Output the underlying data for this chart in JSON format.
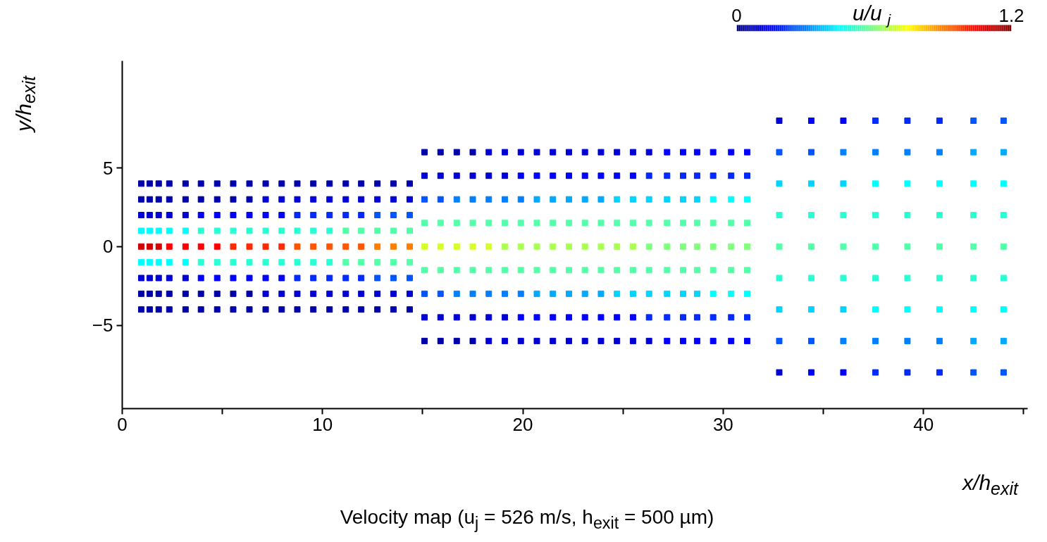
{
  "chart_data": {
    "type": "scatter",
    "xlabel": "x/h$_{exit}$",
    "ylabel": "y/h$_{exit}$",
    "clabel": "u/u$_{j}$",
    "annotations": [
      "Velocity map (u$_{j}$ = 526 m/s, h$_{exit}$ = 500 µm)"
    ],
    "xlim": [
      0,
      45.2
    ],
    "ylim": [
      -10.3,
      11.8
    ],
    "xticks": [
      0,
      {
        "value": 5,
        "label": null
      },
      10,
      {
        "value": 15,
        "label": null
      },
      20,
      {
        "value": 25,
        "label": null
      },
      30,
      {
        "value": 35,
        "label": null
      },
      40,
      {
        "value": 45,
        "label": null
      }
    ],
    "yticks": [
      -5,
      0,
      5
    ],
    "clim": [
      0,
      1.2
    ],
    "cticks": [
      0,
      1.2
    ],
    "marker": "square",
    "series": [
      {
        "x": [
          0.95,
          0.95,
          0.95,
          0.95,
          0.95,
          0.95,
          0.95,
          0.95,
          0.95
        ],
        "values": [
          -4,
          -3,
          -2,
          -1,
          0,
          1,
          2,
          3,
          4
        ],
        "cvalues": [
          0.05,
          0.05,
          0.1,
          0.45,
          1.1,
          0.45,
          0.1,
          0.05,
          0.05
        ],
        "colors": [
          "#0000aa",
          "#0000aa",
          "#0000d4",
          "#00ffff",
          "#d40000",
          "#00ffff",
          "#0000d4",
          "#0000aa",
          "#0000aa"
        ]
      },
      {
        "x": [
          1.37,
          1.37,
          1.37,
          1.37,
          1.37,
          1.37,
          1.37,
          1.37,
          1.37
        ],
        "values": [
          -4,
          -3,
          -2,
          -1,
          0,
          1,
          2,
          3,
          4
        ],
        "cvalues": [
          0.05,
          0.05,
          0.1,
          0.45,
          1.1,
          0.45,
          0.1,
          0.05,
          0.05
        ],
        "colors": [
          "#0000aa",
          "#0000aa",
          "#0000d4",
          "#00ffff",
          "#d40000",
          "#00ffff",
          "#0000d4",
          "#0000aa",
          "#0000aa"
        ]
      },
      {
        "x": [
          1.82,
          1.82,
          1.82,
          1.82,
          1.82,
          1.82,
          1.82,
          1.82,
          1.82
        ],
        "values": [
          -4,
          -3,
          -2,
          -1,
          0,
          1,
          2,
          3,
          4
        ],
        "cvalues": [
          0.05,
          0.05,
          0.1,
          0.45,
          1.1,
          0.45,
          0.1,
          0.05,
          0.05
        ],
        "colors": [
          "#0000aa",
          "#0000aa",
          "#0000d4",
          "#00ffff",
          "#d40000",
          "#00ffff",
          "#0000d4",
          "#0000aa",
          "#0000aa"
        ]
      },
      {
        "x": [
          2.35,
          2.35,
          2.35,
          2.35,
          2.35,
          2.35,
          2.35,
          2.35,
          2.35
        ],
        "values": [
          -4,
          -3,
          -2,
          -1,
          0,
          1,
          2,
          3,
          4
        ],
        "cvalues": [
          0.05,
          0.05,
          0.1,
          0.45,
          1.05,
          0.45,
          0.1,
          0.05,
          0.05
        ],
        "colors": [
          "#0000aa",
          "#0000aa",
          "#0000d4",
          "#00ffff",
          "#ff0000",
          "#00ffff",
          "#0000d4",
          "#0000aa",
          "#0000aa"
        ]
      },
      {
        "x": [
          3.16,
          3.16,
          3.16,
          3.16,
          3.16,
          3.16,
          3.16,
          3.16,
          3.16
        ],
        "values": [
          -4,
          -3,
          -2,
          -1,
          0,
          1,
          2,
          3,
          4
        ],
        "cvalues": [
          0.05,
          0.05,
          0.1,
          0.45,
          1.05,
          0.45,
          0.1,
          0.05,
          0.05
        ],
        "colors": [
          "#0000aa",
          "#0000aa",
          "#0000d4",
          "#00ffff",
          "#ff0000",
          "#00ffff",
          "#0000d4",
          "#0000aa",
          "#0000aa"
        ]
      },
      {
        "x": [
          3.93,
          3.93,
          3.93,
          3.93,
          3.93,
          3.93,
          3.93,
          3.93,
          3.93
        ],
        "values": [
          -4,
          -3,
          -2,
          -1,
          0,
          1,
          2,
          3,
          4
        ],
        "cvalues": [
          0.05,
          0.05,
          0.15,
          0.5,
          1.05,
          0.5,
          0.15,
          0.05,
          0.05
        ],
        "colors": [
          "#0000aa",
          "#0000aa",
          "#0000ff",
          "#2affd4",
          "#ff0000",
          "#2affd4",
          "#0000ff",
          "#0000aa",
          "#0000aa"
        ]
      },
      {
        "x": [
          4.74,
          4.74,
          4.74,
          4.74,
          4.74,
          4.74,
          4.74,
          4.74,
          4.74
        ],
        "values": [
          -4,
          -3,
          -2,
          -1,
          0,
          1,
          2,
          3,
          4
        ],
        "cvalues": [
          0.05,
          0.05,
          0.15,
          0.5,
          1.05,
          0.5,
          0.15,
          0.05,
          0.05
        ],
        "colors": [
          "#0000aa",
          "#0000aa",
          "#0000ff",
          "#2affd4",
          "#ff0000",
          "#2affd4",
          "#0000ff",
          "#0000aa",
          "#0000aa"
        ]
      },
      {
        "x": [
          5.54,
          5.54,
          5.54,
          5.54,
          5.54,
          5.54,
          5.54,
          5.54,
          5.54
        ],
        "values": [
          -4,
          -3,
          -2,
          -1,
          0,
          1,
          2,
          3,
          4
        ],
        "cvalues": [
          0.05,
          0.05,
          0.15,
          0.5,
          1.0,
          0.5,
          0.15,
          0.05,
          0.05
        ],
        "colors": [
          "#0000aa",
          "#0000aa",
          "#0000ff",
          "#2affd4",
          "#ff2a00",
          "#2affd4",
          "#0000ff",
          "#0000aa",
          "#0000aa"
        ]
      },
      {
        "x": [
          6.35,
          6.35,
          6.35,
          6.35,
          6.35,
          6.35,
          6.35,
          6.35,
          6.35
        ],
        "values": [
          -4,
          -3,
          -2,
          -1,
          0,
          1,
          2,
          3,
          4
        ],
        "cvalues": [
          0.05,
          0.05,
          0.15,
          0.5,
          1.0,
          0.5,
          0.15,
          0.05,
          0.05
        ],
        "colors": [
          "#0000aa",
          "#0000aa",
          "#0000ff",
          "#2affd4",
          "#ff2a00",
          "#2affd4",
          "#0000ff",
          "#0000aa",
          "#0000aa"
        ]
      },
      {
        "x": [
          7.16,
          7.16,
          7.16,
          7.16,
          7.16,
          7.16,
          7.16,
          7.16,
          7.16
        ],
        "values": [
          -4,
          -3,
          -2,
          -1,
          0,
          1,
          2,
          3,
          4
        ],
        "cvalues": [
          0.05,
          0.1,
          0.15,
          0.5,
          1.0,
          0.5,
          0.15,
          0.1,
          0.05
        ],
        "colors": [
          "#0000aa",
          "#0000d4",
          "#0000ff",
          "#2affd4",
          "#ff2a00",
          "#2affd4",
          "#0000ff",
          "#0000d4",
          "#0000aa"
        ]
      },
      {
        "x": [
          7.96,
          7.96,
          7.96,
          7.96,
          7.96,
          7.96,
          7.96,
          7.96,
          7.96
        ],
        "values": [
          -4,
          -3,
          -2,
          -1,
          0,
          1,
          2,
          3,
          4
        ],
        "cvalues": [
          0.05,
          0.1,
          0.15,
          0.5,
          1.0,
          0.5,
          0.15,
          0.1,
          0.05
        ],
        "colors": [
          "#0000aa",
          "#0000d4",
          "#0000ff",
          "#2affd4",
          "#ff2a00",
          "#2affd4",
          "#0000ff",
          "#0000d4",
          "#0000aa"
        ]
      },
      {
        "x": [
          8.74,
          8.74,
          8.74,
          8.74,
          8.74,
          8.74,
          8.74,
          8.74,
          8.74
        ],
        "values": [
          -4,
          -3,
          -2,
          -1,
          0,
          1,
          2,
          3,
          4
        ],
        "cvalues": [
          0.05,
          0.1,
          0.2,
          0.5,
          0.95,
          0.5,
          0.2,
          0.1,
          0.05
        ],
        "colors": [
          "#0000aa",
          "#0000d4",
          "#002aff",
          "#2affd4",
          "#ff5500",
          "#2affd4",
          "#002aff",
          "#0000d4",
          "#0000aa"
        ]
      },
      {
        "x": [
          9.54,
          9.54,
          9.54,
          9.54,
          9.54,
          9.54,
          9.54,
          9.54,
          9.54
        ],
        "values": [
          -4,
          -3,
          -2,
          -1,
          0,
          1,
          2,
          3,
          4
        ],
        "cvalues": [
          0.05,
          0.1,
          0.2,
          0.5,
          0.95,
          0.5,
          0.2,
          0.1,
          0.05
        ],
        "colors": [
          "#0000aa",
          "#0000d4",
          "#002aff",
          "#2affd4",
          "#ff5500",
          "#2affd4",
          "#002aff",
          "#0000d4",
          "#0000aa"
        ]
      },
      {
        "x": [
          10.35,
          10.35,
          10.35,
          10.35,
          10.35,
          10.35,
          10.35,
          10.35,
          10.35
        ],
        "values": [
          -4,
          -3,
          -2,
          -1,
          0,
          1,
          2,
          3,
          4
        ],
        "cvalues": [
          0.05,
          0.1,
          0.2,
          0.5,
          0.95,
          0.5,
          0.2,
          0.1,
          0.05
        ],
        "colors": [
          "#0000aa",
          "#0000d4",
          "#002aff",
          "#2affd4",
          "#ff5500",
          "#2affd4",
          "#002aff",
          "#0000d4",
          "#0000aa"
        ]
      },
      {
        "x": [
          11.16,
          11.16,
          11.16,
          11.16,
          11.16,
          11.16,
          11.16,
          11.16,
          11.16
        ],
        "values": [
          -4,
          -3,
          -2,
          -1,
          0,
          1,
          2,
          3,
          4
        ],
        "cvalues": [
          0.05,
          0.1,
          0.2,
          0.55,
          0.95,
          0.55,
          0.2,
          0.1,
          0.05
        ],
        "colors": [
          "#0000aa",
          "#0000d4",
          "#002aff",
          "#55ffaa",
          "#ff5500",
          "#55ffaa",
          "#002aff",
          "#0000d4",
          "#0000aa"
        ]
      },
      {
        "x": [
          11.93,
          11.93,
          11.93,
          11.93,
          11.93,
          11.93,
          11.93,
          11.93,
          11.93
        ],
        "values": [
          -4,
          -3,
          -2,
          -1,
          0,
          1,
          2,
          3,
          4
        ],
        "cvalues": [
          0.05,
          0.1,
          0.2,
          0.55,
          0.95,
          0.55,
          0.2,
          0.1,
          0.05
        ],
        "colors": [
          "#0000aa",
          "#0000d4",
          "#002aff",
          "#55ffaa",
          "#ff5500",
          "#55ffaa",
          "#002aff",
          "#0000d4",
          "#0000aa"
        ]
      },
      {
        "x": [
          12.74,
          12.74,
          12.74,
          12.74,
          12.74,
          12.74,
          12.74,
          12.74,
          12.74
        ],
        "values": [
          -4,
          -3,
          -2,
          -1,
          0,
          1,
          2,
          3,
          4
        ],
        "cvalues": [
          0.05,
          0.1,
          0.25,
          0.55,
          0.9,
          0.55,
          0.25,
          0.1,
          0.05
        ],
        "colors": [
          "#0000aa",
          "#0000d4",
          "#0055ff",
          "#55ffaa",
          "#ff8000",
          "#55ffaa",
          "#0055ff",
          "#0000d4",
          "#0000aa"
        ]
      },
      {
        "x": [
          13.54,
          13.54,
          13.54,
          13.54,
          13.54,
          13.54,
          13.54,
          13.54,
          13.54
        ],
        "values": [
          -4,
          -3,
          -2,
          -1,
          0,
          1,
          2,
          3,
          4
        ],
        "cvalues": [
          0.05,
          0.1,
          0.25,
          0.55,
          0.9,
          0.55,
          0.25,
          0.1,
          0.05
        ],
        "colors": [
          "#0000aa",
          "#0000d4",
          "#0055ff",
          "#55ffaa",
          "#ff8000",
          "#55ffaa",
          "#0055ff",
          "#0000d4",
          "#0000aa"
        ]
      },
      {
        "x": [
          14.35,
          14.35,
          14.35,
          14.35,
          14.35,
          14.35,
          14.35,
          14.35,
          14.35
        ],
        "values": [
          -4,
          -3,
          -2,
          -1,
          0,
          1,
          2,
          3,
          4
        ],
        "cvalues": [
          0.05,
          0.1,
          0.25,
          0.55,
          0.9,
          0.55,
          0.25,
          0.1,
          0.05
        ],
        "colors": [
          "#0000aa",
          "#0000d4",
          "#0055ff",
          "#55ffaa",
          "#ff8000",
          "#55ffaa",
          "#0055ff",
          "#0000d4",
          "#0000aa"
        ]
      },
      {
        "x": [
          15.09,
          15.09,
          15.09,
          15.09,
          15.09,
          15.09,
          15.09,
          15.09,
          15.09
        ],
        "values": [
          -6,
          -4.5,
          -3,
          -1.5,
          0,
          1.5,
          3,
          4.5,
          6
        ],
        "cvalues": [
          0.05,
          0.1,
          0.25,
          0.55,
          0.7,
          0.55,
          0.25,
          0.1,
          0.05
        ],
        "colors": [
          "#0000aa",
          "#0000d4",
          "#0055ff",
          "#55ffaa",
          "#d4ff2a",
          "#55ffaa",
          "#0055ff",
          "#0000d4",
          "#0000aa"
        ]
      },
      {
        "x": [
          15.89,
          15.89,
          15.89,
          15.89,
          15.89,
          15.89,
          15.89,
          15.89,
          15.89
        ],
        "values": [
          -6,
          -4.5,
          -3,
          -1.5,
          0,
          1.5,
          3,
          4.5,
          6
        ],
        "cvalues": [
          0.05,
          0.1,
          0.25,
          0.55,
          0.7,
          0.55,
          0.25,
          0.1,
          0.05
        ],
        "colors": [
          "#0000aa",
          "#0000d4",
          "#0055ff",
          "#55ffaa",
          "#d4ff2a",
          "#55ffaa",
          "#0055ff",
          "#0000d4",
          "#0000aa"
        ]
      },
      {
        "x": [
          16.7,
          16.7,
          16.7,
          16.7,
          16.7,
          16.7,
          16.7,
          16.7,
          16.7
        ],
        "values": [
          -6,
          -4.5,
          -3,
          -1.5,
          0,
          1.5,
          3,
          4.5,
          6
        ],
        "cvalues": [
          0.05,
          0.1,
          0.3,
          0.55,
          0.7,
          0.55,
          0.3,
          0.1,
          0.05
        ],
        "colors": [
          "#0000aa",
          "#0000d4",
          "#0080ff",
          "#55ffaa",
          "#d4ff2a",
          "#55ffaa",
          "#0080ff",
          "#0000d4",
          "#0000aa"
        ]
      },
      {
        "x": [
          17.5,
          17.5,
          17.5,
          17.5,
          17.5,
          17.5,
          17.5,
          17.5,
          17.5
        ],
        "values": [
          -6,
          -4.5,
          -3,
          -1.5,
          0,
          1.5,
          3,
          4.5,
          6
        ],
        "cvalues": [
          0.05,
          0.1,
          0.3,
          0.55,
          0.7,
          0.55,
          0.3,
          0.1,
          0.05
        ],
        "colors": [
          "#0000aa",
          "#0000d4",
          "#0080ff",
          "#55ffaa",
          "#d4ff2a",
          "#55ffaa",
          "#0080ff",
          "#0000d4",
          "#0000aa"
        ]
      },
      {
        "x": [
          18.3,
          18.3,
          18.3,
          18.3,
          18.3,
          18.3,
          18.3,
          18.3,
          18.3
        ],
        "values": [
          -6,
          -4.5,
          -3,
          -1.5,
          0,
          1.5,
          3,
          4.5,
          6
        ],
        "cvalues": [
          0.1,
          0.1,
          0.3,
          0.55,
          0.7,
          0.55,
          0.3,
          0.1,
          0.1
        ],
        "colors": [
          "#0000d4",
          "#0000d4",
          "#0080ff",
          "#55ffaa",
          "#d4ff2a",
          "#55ffaa",
          "#0080ff",
          "#0000d4",
          "#0000d4"
        ]
      },
      {
        "x": [
          19.1,
          19.1,
          19.1,
          19.1,
          19.1,
          19.1,
          19.1,
          19.1,
          19.1
        ],
        "values": [
          -6,
          -4.5,
          -3,
          -1.5,
          0,
          1.5,
          3,
          4.5,
          6
        ],
        "cvalues": [
          0.1,
          0.1,
          0.3,
          0.55,
          0.65,
          0.55,
          0.3,
          0.1,
          0.1
        ],
        "colors": [
          "#0000d4",
          "#0000d4",
          "#0080ff",
          "#55ffaa",
          "#aaff55",
          "#55ffaa",
          "#0080ff",
          "#0000d4",
          "#0000d4"
        ]
      },
      {
        "x": [
          19.9,
          19.9,
          19.9,
          19.9,
          19.9,
          19.9,
          19.9,
          19.9,
          19.9
        ],
        "values": [
          -6,
          -4.5,
          -3,
          -1.5,
          0,
          1.5,
          3,
          4.5,
          6
        ],
        "cvalues": [
          0.1,
          0.15,
          0.3,
          0.55,
          0.65,
          0.55,
          0.3,
          0.15,
          0.1
        ],
        "colors": [
          "#0000d4",
          "#0000ff",
          "#0080ff",
          "#55ffaa",
          "#aaff55",
          "#55ffaa",
          "#0080ff",
          "#0000ff",
          "#0000d4"
        ]
      },
      {
        "x": [
          20.7,
          20.7,
          20.7,
          20.7,
          20.7,
          20.7,
          20.7,
          20.7,
          20.7
        ],
        "values": [
          -6,
          -4.5,
          -3,
          -1.5,
          0,
          1.5,
          3,
          4.5,
          6
        ],
        "cvalues": [
          0.1,
          0.15,
          0.35,
          0.55,
          0.65,
          0.55,
          0.35,
          0.15,
          0.1
        ],
        "colors": [
          "#0000d4",
          "#0000ff",
          "#00aaff",
          "#55ffaa",
          "#aaff55",
          "#55ffaa",
          "#00aaff",
          "#0000ff",
          "#0000d4"
        ]
      },
      {
        "x": [
          21.5,
          21.5,
          21.5,
          21.5,
          21.5,
          21.5,
          21.5,
          21.5,
          21.5
        ],
        "values": [
          -6,
          -4.5,
          -3,
          -1.5,
          0,
          1.5,
          3,
          4.5,
          6
        ],
        "cvalues": [
          0.1,
          0.15,
          0.35,
          0.55,
          0.65,
          0.55,
          0.35,
          0.15,
          0.1
        ],
        "colors": [
          "#0000d4",
          "#0000ff",
          "#00aaff",
          "#55ffaa",
          "#aaff55",
          "#55ffaa",
          "#00aaff",
          "#0000ff",
          "#0000d4"
        ]
      },
      {
        "x": [
          22.3,
          22.3,
          22.3,
          22.3,
          22.3,
          22.3,
          22.3,
          22.3,
          22.3
        ],
        "values": [
          -6,
          -4.5,
          -3,
          -1.5,
          0,
          1.5,
          3,
          4.5,
          6
        ],
        "cvalues": [
          0.1,
          0.15,
          0.35,
          0.55,
          0.65,
          0.55,
          0.35,
          0.15,
          0.1
        ],
        "colors": [
          "#0000d4",
          "#0000ff",
          "#00aaff",
          "#55ffaa",
          "#aaff55",
          "#55ffaa",
          "#00aaff",
          "#0000ff",
          "#0000d4"
        ]
      },
      {
        "x": [
          23.1,
          23.1,
          23.1,
          23.1,
          23.1,
          23.1,
          23.1,
          23.1,
          23.1
        ],
        "values": [
          -6,
          -4.5,
          -3,
          -1.5,
          0,
          1.5,
          3,
          4.5,
          6
        ],
        "cvalues": [
          0.1,
          0.15,
          0.35,
          0.55,
          0.65,
          0.55,
          0.35,
          0.15,
          0.1
        ],
        "colors": [
          "#0000d4",
          "#0000ff",
          "#00aaff",
          "#55ffaa",
          "#aaff55",
          "#55ffaa",
          "#00aaff",
          "#0000ff",
          "#0000d4"
        ]
      },
      {
        "x": [
          23.9,
          23.9,
          23.9,
          23.9,
          23.9,
          23.9,
          23.9,
          23.9,
          23.9
        ],
        "values": [
          -6,
          -4.5,
          -3,
          -1.5,
          0,
          1.5,
          3,
          4.5,
          6
        ],
        "cvalues": [
          0.1,
          0.15,
          0.35,
          0.55,
          0.65,
          0.55,
          0.35,
          0.15,
          0.1
        ],
        "colors": [
          "#0000d4",
          "#0000ff",
          "#00aaff",
          "#55ffaa",
          "#aaff55",
          "#55ffaa",
          "#00aaff",
          "#0000ff",
          "#0000d4"
        ]
      },
      {
        "x": [
          24.7,
          24.7,
          24.7,
          24.7,
          24.7,
          24.7,
          24.7,
          24.7,
          24.7
        ],
        "values": [
          -6,
          -4.5,
          -3,
          -1.5,
          0,
          1.5,
          3,
          4.5,
          6
        ],
        "cvalues": [
          0.1,
          0.15,
          0.4,
          0.55,
          0.65,
          0.55,
          0.4,
          0.15,
          0.1
        ],
        "colors": [
          "#0000d4",
          "#0000ff",
          "#00d4ff",
          "#55ffaa",
          "#aaff55",
          "#55ffaa",
          "#00d4ff",
          "#0000ff",
          "#0000d4"
        ]
      },
      {
        "x": [
          25.5,
          25.5,
          25.5,
          25.5,
          25.5,
          25.5,
          25.5,
          25.5,
          25.5
        ],
        "values": [
          -6,
          -4.5,
          -3,
          -1.5,
          0,
          1.5,
          3,
          4.5,
          6
        ],
        "cvalues": [
          0.1,
          0.15,
          0.4,
          0.55,
          0.65,
          0.55,
          0.4,
          0.15,
          0.1
        ],
        "colors": [
          "#0000d4",
          "#0000ff",
          "#00d4ff",
          "#55ffaa",
          "#aaff55",
          "#55ffaa",
          "#00d4ff",
          "#0000ff",
          "#0000d4"
        ]
      },
      {
        "x": [
          26.3,
          26.3,
          26.3,
          26.3,
          26.3,
          26.3,
          26.3,
          26.3,
          26.3
        ],
        "values": [
          -6,
          -4.5,
          -3,
          -1.5,
          0,
          1.5,
          3,
          4.5,
          6
        ],
        "cvalues": [
          0.1,
          0.2,
          0.4,
          0.55,
          0.6,
          0.55,
          0.4,
          0.2,
          0.1
        ],
        "colors": [
          "#0000d4",
          "#002aff",
          "#00d4ff",
          "#55ffaa",
          "#80ff80",
          "#55ffaa",
          "#00d4ff",
          "#002aff",
          "#0000d4"
        ]
      },
      {
        "x": [
          27.2,
          27.2,
          27.2,
          27.2,
          27.2,
          27.2,
          27.2,
          27.2,
          27.2
        ],
        "values": [
          -6,
          -4.5,
          -3,
          -1.5,
          0,
          1.5,
          3,
          4.5,
          6
        ],
        "cvalues": [
          0.15,
          0.2,
          0.4,
          0.55,
          0.6,
          0.55,
          0.4,
          0.2,
          0.15
        ],
        "colors": [
          "#0000ff",
          "#002aff",
          "#00d4ff",
          "#55ffaa",
          "#80ff80",
          "#55ffaa",
          "#00d4ff",
          "#002aff",
          "#0000ff"
        ]
      },
      {
        "x": [
          28.0,
          28.0,
          28.0,
          28.0,
          28.0,
          28.0,
          28.0,
          28.0,
          28.0
        ],
        "values": [
          -6,
          -4.5,
          -3,
          -1.5,
          0,
          1.5,
          3,
          4.5,
          6
        ],
        "cvalues": [
          0.15,
          0.2,
          0.4,
          0.55,
          0.6,
          0.55,
          0.4,
          0.2,
          0.15
        ],
        "colors": [
          "#0000ff",
          "#002aff",
          "#00d4ff",
          "#55ffaa",
          "#80ff80",
          "#55ffaa",
          "#00d4ff",
          "#002aff",
          "#0000ff"
        ]
      },
      {
        "x": [
          28.7,
          28.7,
          28.7,
          28.7,
          28.7,
          28.7,
          28.7,
          28.7,
          28.7
        ],
        "values": [
          -6,
          -4.5,
          -3,
          -1.5,
          0,
          1.5,
          3,
          4.5,
          6
        ],
        "cvalues": [
          0.15,
          0.2,
          0.4,
          0.55,
          0.6,
          0.55,
          0.4,
          0.2,
          0.15
        ],
        "colors": [
          "#0000ff",
          "#002aff",
          "#00d4ff",
          "#55ffaa",
          "#80ff80",
          "#55ffaa",
          "#00d4ff",
          "#002aff",
          "#0000ff"
        ]
      },
      {
        "x": [
          29.5,
          29.5,
          29.5,
          29.5,
          29.5,
          29.5,
          29.5,
          29.5,
          29.5
        ],
        "values": [
          -6,
          -4.5,
          -3,
          -1.5,
          0,
          1.5,
          3,
          4.5,
          6
        ],
        "cvalues": [
          0.15,
          0.2,
          0.45,
          0.55,
          0.6,
          0.55,
          0.45,
          0.2,
          0.15
        ],
        "colors": [
          "#0000ff",
          "#002aff",
          "#00ffff",
          "#55ffaa",
          "#80ff80",
          "#55ffaa",
          "#00ffff",
          "#002aff",
          "#0000ff"
        ]
      },
      {
        "x": [
          30.4,
          30.4,
          30.4,
          30.4,
          30.4,
          30.4,
          30.4,
          30.4,
          30.4
        ],
        "values": [
          -6,
          -4.5,
          -3,
          -1.5,
          0,
          1.5,
          3,
          4.5,
          6
        ],
        "cvalues": [
          0.15,
          0.2,
          0.45,
          0.55,
          0.6,
          0.55,
          0.45,
          0.2,
          0.15
        ],
        "colors": [
          "#0000ff",
          "#002aff",
          "#00ffff",
          "#55ffaa",
          "#80ff80",
          "#55ffaa",
          "#00ffff",
          "#002aff",
          "#0000ff"
        ]
      },
      {
        "x": [
          31.2,
          31.2,
          31.2,
          31.2,
          31.2,
          31.2,
          31.2,
          31.2,
          31.2
        ],
        "values": [
          -6,
          -4.5,
          -3,
          -1.5,
          0,
          1.5,
          3,
          4.5,
          6
        ],
        "cvalues": [
          0.15,
          0.2,
          0.45,
          0.55,
          0.6,
          0.55,
          0.45,
          0.2,
          0.15
        ],
        "colors": [
          "#0000ff",
          "#002aff",
          "#00ffff",
          "#55ffaa",
          "#80ff80",
          "#55ffaa",
          "#00ffff",
          "#002aff",
          "#0000ff"
        ]
      },
      {
        "x": [
          32.8,
          32.8,
          32.8,
          32.8,
          32.8,
          32.8,
          32.8,
          32.8,
          32.8
        ],
        "values": [
          -8,
          -6,
          -4,
          -2,
          0,
          2,
          4,
          6,
          8
        ],
        "cvalues": [
          0.1,
          0.25,
          0.4,
          0.5,
          0.55,
          0.5,
          0.4,
          0.25,
          0.1
        ],
        "colors": [
          "#0000d4",
          "#0055ff",
          "#00d4ff",
          "#2affd4",
          "#55ffaa",
          "#2affd4",
          "#00d4ff",
          "#0055ff",
          "#0000d4"
        ]
      },
      {
        "x": [
          34.4,
          34.4,
          34.4,
          34.4,
          34.4,
          34.4,
          34.4,
          34.4,
          34.4
        ],
        "values": [
          -8,
          -6,
          -4,
          -2,
          0,
          2,
          4,
          6,
          8
        ],
        "cvalues": [
          0.15,
          0.25,
          0.4,
          0.5,
          0.55,
          0.5,
          0.4,
          0.25,
          0.15
        ],
        "colors": [
          "#0000ff",
          "#0055ff",
          "#00d4ff",
          "#2affd4",
          "#55ffaa",
          "#2affd4",
          "#00d4ff",
          "#0055ff",
          "#0000ff"
        ]
      },
      {
        "x": [
          36.0,
          36.0,
          36.0,
          36.0,
          36.0,
          36.0,
          36.0,
          36.0,
          36.0
        ],
        "values": [
          -8,
          -6,
          -4,
          -2,
          0,
          2,
          4,
          6,
          8
        ],
        "cvalues": [
          0.15,
          0.3,
          0.4,
          0.5,
          0.55,
          0.5,
          0.4,
          0.3,
          0.15
        ],
        "colors": [
          "#0000ff",
          "#0080ff",
          "#00d4ff",
          "#2affd4",
          "#55ffaa",
          "#2affd4",
          "#00d4ff",
          "#0080ff",
          "#0000ff"
        ]
      },
      {
        "x": [
          37.6,
          37.6,
          37.6,
          37.6,
          37.6,
          37.6,
          37.6,
          37.6,
          37.6
        ],
        "values": [
          -8,
          -6,
          -4,
          -2,
          0,
          2,
          4,
          6,
          8
        ],
        "cvalues": [
          0.2,
          0.3,
          0.45,
          0.5,
          0.55,
          0.5,
          0.45,
          0.3,
          0.2
        ],
        "colors": [
          "#002aff",
          "#0080ff",
          "#00ffff",
          "#2affd4",
          "#55ffaa",
          "#2affd4",
          "#00ffff",
          "#0080ff",
          "#002aff"
        ]
      },
      {
        "x": [
          39.2,
          39.2,
          39.2,
          39.2,
          39.2,
          39.2,
          39.2,
          39.2,
          39.2
        ],
        "values": [
          -8,
          -6,
          -4,
          -2,
          0,
          2,
          4,
          6,
          8
        ],
        "cvalues": [
          0.2,
          0.3,
          0.45,
          0.5,
          0.55,
          0.5,
          0.45,
          0.3,
          0.2
        ],
        "colors": [
          "#002aff",
          "#0080ff",
          "#00ffff",
          "#2affd4",
          "#55ffaa",
          "#2affd4",
          "#00ffff",
          "#0080ff",
          "#002aff"
        ]
      },
      {
        "x": [
          40.8,
          40.8,
          40.8,
          40.8,
          40.8,
          40.8,
          40.8,
          40.8,
          40.8
        ],
        "values": [
          -8,
          -6,
          -4,
          -2,
          0,
          2,
          4,
          6,
          8
        ],
        "cvalues": [
          0.2,
          0.3,
          0.45,
          0.5,
          0.55,
          0.5,
          0.45,
          0.3,
          0.2
        ],
        "colors": [
          "#002aff",
          "#0080ff",
          "#00ffff",
          "#2affd4",
          "#55ffaa",
          "#2affd4",
          "#00ffff",
          "#0080ff",
          "#002aff"
        ]
      },
      {
        "x": [
          42.5,
          42.5,
          42.5,
          42.5,
          42.5,
          42.5,
          42.5,
          42.5,
          42.5
        ],
        "values": [
          -8,
          -6,
          -4,
          -2,
          0,
          2,
          4,
          6,
          8
        ],
        "cvalues": [
          0.25,
          0.35,
          0.45,
          0.5,
          0.55,
          0.5,
          0.45,
          0.35,
          0.25
        ],
        "colors": [
          "#0055ff",
          "#00aaff",
          "#00ffff",
          "#2affd4",
          "#55ffaa",
          "#2affd4",
          "#00ffff",
          "#00aaff",
          "#0055ff"
        ]
      },
      {
        "x": [
          44.0,
          44.0,
          44.0,
          44.0,
          44.0,
          44.0,
          44.0,
          44.0,
          44.0
        ],
        "values": [
          -8,
          -6,
          -4,
          -2,
          0,
          2,
          4,
          6,
          8
        ],
        "cvalues": [
          0.25,
          0.35,
          0.45,
          0.5,
          0.55,
          0.5,
          0.45,
          0.35,
          0.25
        ],
        "colors": [
          "#0055ff",
          "#00aaff",
          "#00ffff",
          "#2affd4",
          "#55ffaa",
          "#2affd4",
          "#00ffff",
          "#00aaff",
          "#0055ff"
        ]
      }
    ]
  }
}
